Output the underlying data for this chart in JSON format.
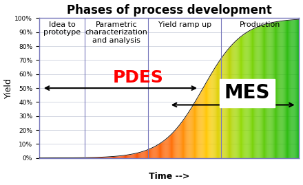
{
  "title": "Phases of process development",
  "time_label": "Time -->",
  "ylabel": "Yield",
  "phases": [
    "Idea to\nprototype",
    "Parametric\ncharacterization\nand analysis",
    "Yield ramp up",
    "Production"
  ],
  "phase_boundaries": [
    0.0,
    0.175,
    0.42,
    0.7,
    1.0
  ],
  "yticks": [
    0,
    10,
    20,
    30,
    40,
    50,
    60,
    70,
    80,
    90,
    100
  ],
  "ytick_labels": [
    "0%",
    "10%",
    "20%",
    "30%",
    "40%",
    "50%",
    "60%",
    "70%",
    "80%",
    "90%",
    "100%"
  ],
  "pdes_label": "PDES",
  "mes_label": "MES",
  "pdes_color": "#FF0000",
  "title_fontsize": 12,
  "phase_label_fontsize": 8,
  "pdes_fontsize": 18,
  "mes_fontsize": 20,
  "background_color": "#FFFFFF",
  "grid_color": "#B0B8CC",
  "phase_line_color": "#7777BB",
  "outer_border_color": "#7777BB"
}
